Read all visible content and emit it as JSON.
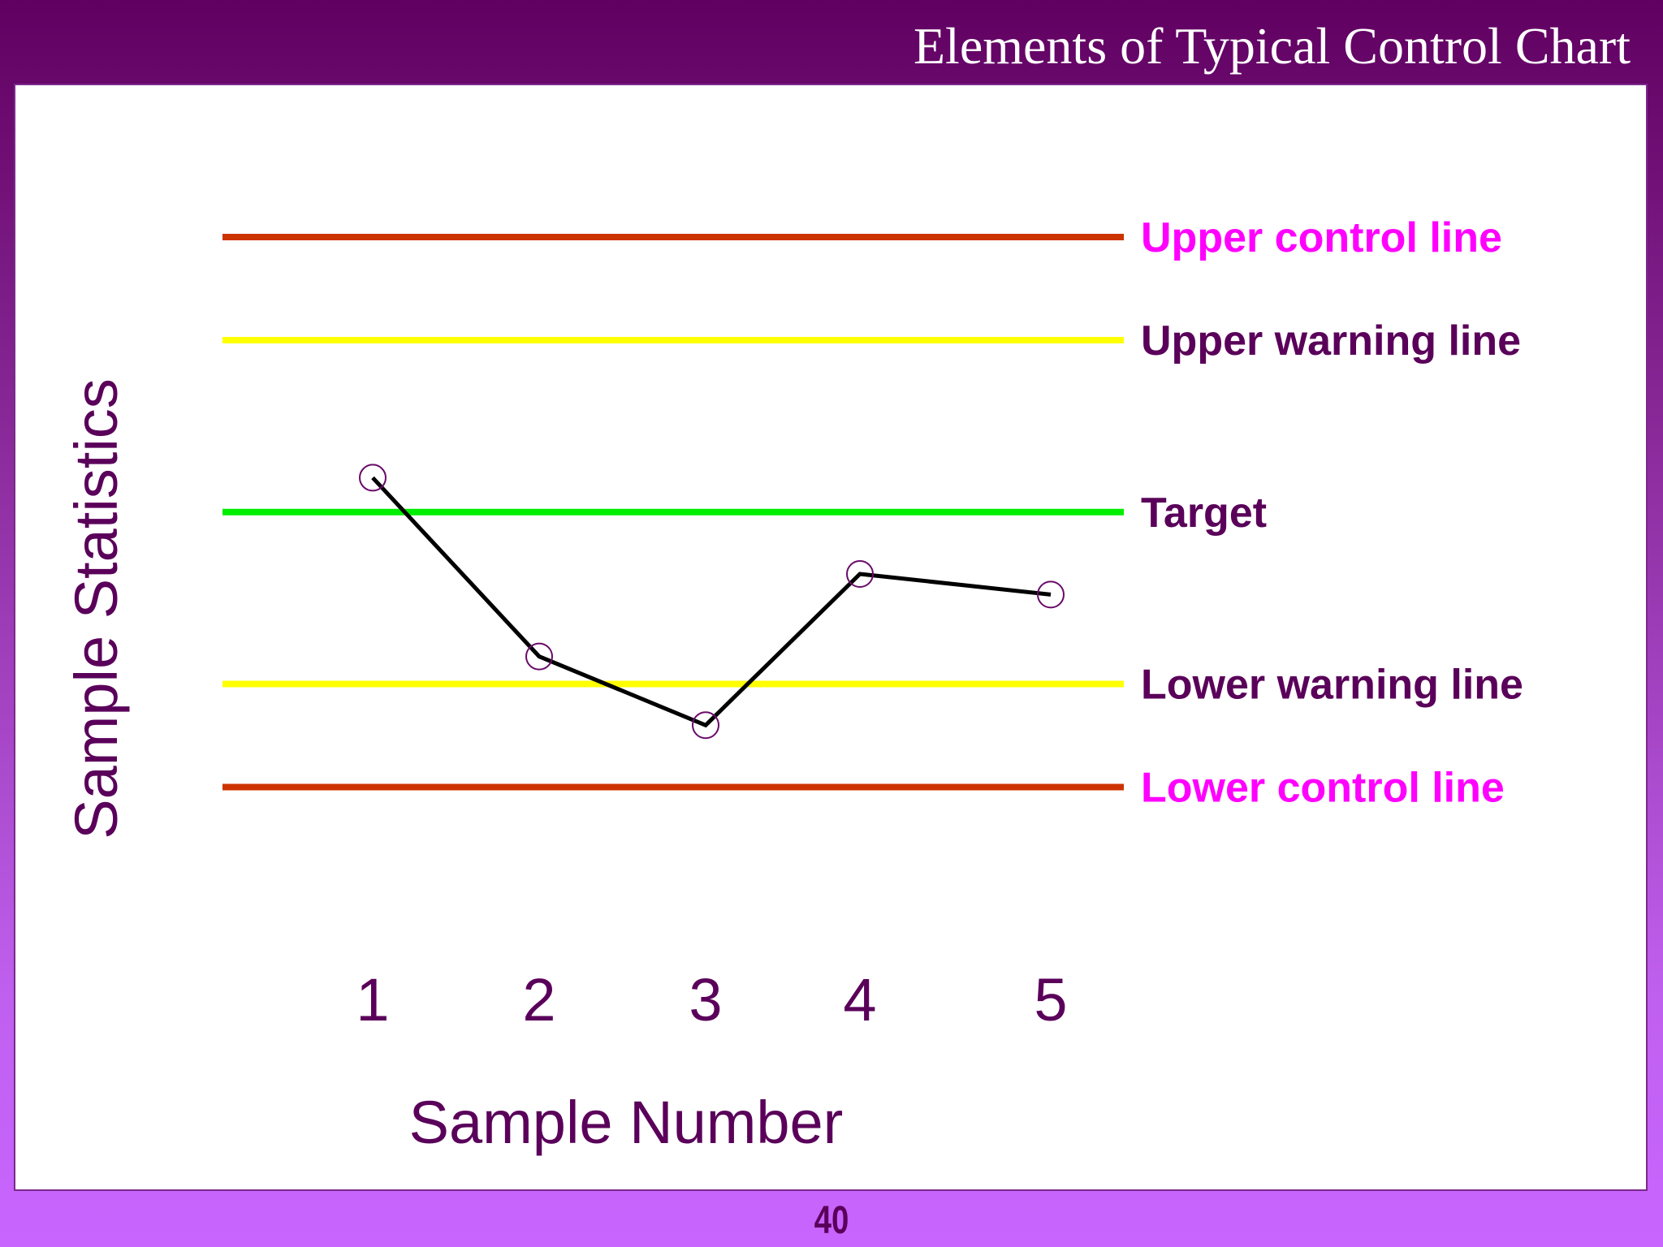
{
  "slide": {
    "title": "Elements of Typical Control Chart",
    "page_number": "40"
  },
  "chart_data": {
    "type": "line",
    "title": "Elements of Typical Control Chart",
    "xlabel": "Sample Number",
    "ylabel": "Sample Statistics",
    "categories": [
      "1",
      "2",
      "3",
      "4",
      "5"
    ],
    "series": [
      {
        "values": [
          4.5,
          1.9,
          0.9,
          3.1,
          2.8
        ]
      }
    ],
    "reference_lines": [
      {
        "label": "Upper control line",
        "value": 8.0,
        "line_color": "#cc3300",
        "label_color": "#ff00ff"
      },
      {
        "label": "Upper warning line",
        "value": 6.5,
        "line_color": "#ffff00",
        "label_color": "#5a005a"
      },
      {
        "label": "Target",
        "value": 4.0,
        "line_color": "#00ee00",
        "label_color": "#5a005a"
      },
      {
        "label": "Lower warning line",
        "value": 1.5,
        "line_color": "#ffff00",
        "label_color": "#5a005a"
      },
      {
        "label": "Lower control line",
        "value": 0.0,
        "line_color": "#cc3300",
        "label_color": "#ff00ff"
      }
    ],
    "ylim": [
      -1.6,
      9.5
    ],
    "grid": false,
    "legend": "none",
    "marker": "open-circle"
  }
}
